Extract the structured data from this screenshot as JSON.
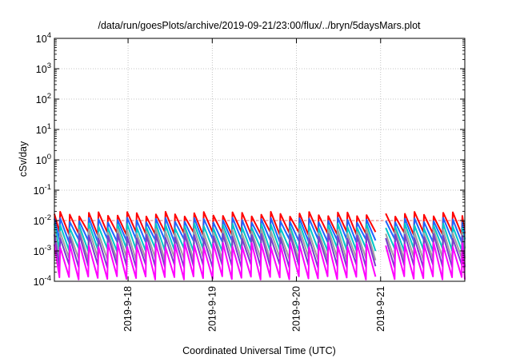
{
  "chart_data": {
    "type": "line",
    "title": "/data/run/goesPlots/archive/2019-09-21/23:00/flux/../bryn/5daysMars.plot",
    "xlabel": "Coordinated Universal Time (UTC)",
    "ylabel": "cSv/day",
    "y_scale": "log",
    "ylim": [
      0.0001,
      10000
    ],
    "y_ticks": [
      {
        "base": "10",
        "exp": "-4"
      },
      {
        "base": "10",
        "exp": "-3"
      },
      {
        "base": "10",
        "exp": "-2"
      },
      {
        "base": "10",
        "exp": "-1"
      },
      {
        "base": "10",
        "exp": "0"
      },
      {
        "base": "10",
        "exp": "1"
      },
      {
        "base": "10",
        "exp": "2"
      },
      {
        "base": "10",
        "exp": "3"
      },
      {
        "base": "10",
        "exp": "4"
      }
    ],
    "xlim": [
      "2019-09-17 03:00",
      "2019-09-22 00:00"
    ],
    "x_ticks": [
      {
        "t": "2019-09-18 00:00",
        "label": "2019-9-18"
      },
      {
        "t": "2019-09-19 00:00",
        "label": "2019-9-19"
      },
      {
        "t": "2019-09-20 00:00",
        "label": "2019-9-20"
      },
      {
        "t": "2019-09-21 00:00",
        "label": "2019-9-21"
      }
    ],
    "grid": true,
    "dashed_reference_line": 0.01,
    "sawtooth_period_hours": 2.73,
    "series": [
      {
        "color": "#ff0000",
        "peak": 0.0165,
        "trough": 0.0038
      },
      {
        "color": "#1e64ff",
        "peak": 0.0105,
        "trough": 0.0022
      },
      {
        "color": "#00c8c8",
        "peak": 0.0068,
        "trough": 0.0011
      },
      {
        "color": "#a0a0a0",
        "peak": 0.0045,
        "trough": 0.00055
      },
      {
        "color": "#7c3ccc",
        "peak": 0.0031,
        "trough": 0.00032
      },
      {
        "color": "#ff00ff",
        "peak": 0.0016,
        "trough": 0.00013
      }
    ]
  }
}
